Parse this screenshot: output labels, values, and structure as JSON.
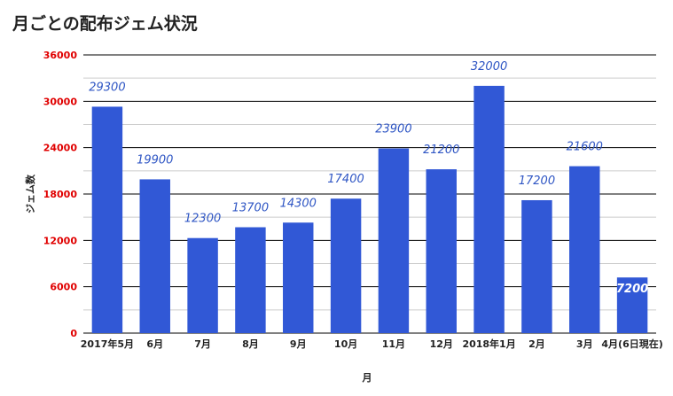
{
  "chart_data": {
    "type": "bar",
    "title": "月ごとの配布ジェム状況",
    "xlabel": "月",
    "ylabel": "ジェム数",
    "categories": [
      "2017年5月",
      "6月",
      "7月",
      "8月",
      "9月",
      "10月",
      "11月",
      "12月",
      "2018年1月",
      "2月",
      "3月",
      "4月(6日現在)"
    ],
    "series": [
      {
        "values": [
          29300,
          19900,
          12300,
          13700,
          14300,
          17400,
          23900,
          21200,
          32000,
          17200,
          21600,
          7200
        ]
      }
    ],
    "ylim": [
      0,
      36000
    ],
    "yticks": [
      0,
      6000,
      12000,
      18000,
      24000,
      30000,
      36000
    ],
    "grid": true,
    "legend": "none",
    "colors": {
      "bar": "#3158d6",
      "data_label": "#2f56c4",
      "data_label_inside": "#ffffff",
      "ytick": "#e00000",
      "grid_major": "#000000",
      "grid_minor": "#cccccc"
    }
  }
}
